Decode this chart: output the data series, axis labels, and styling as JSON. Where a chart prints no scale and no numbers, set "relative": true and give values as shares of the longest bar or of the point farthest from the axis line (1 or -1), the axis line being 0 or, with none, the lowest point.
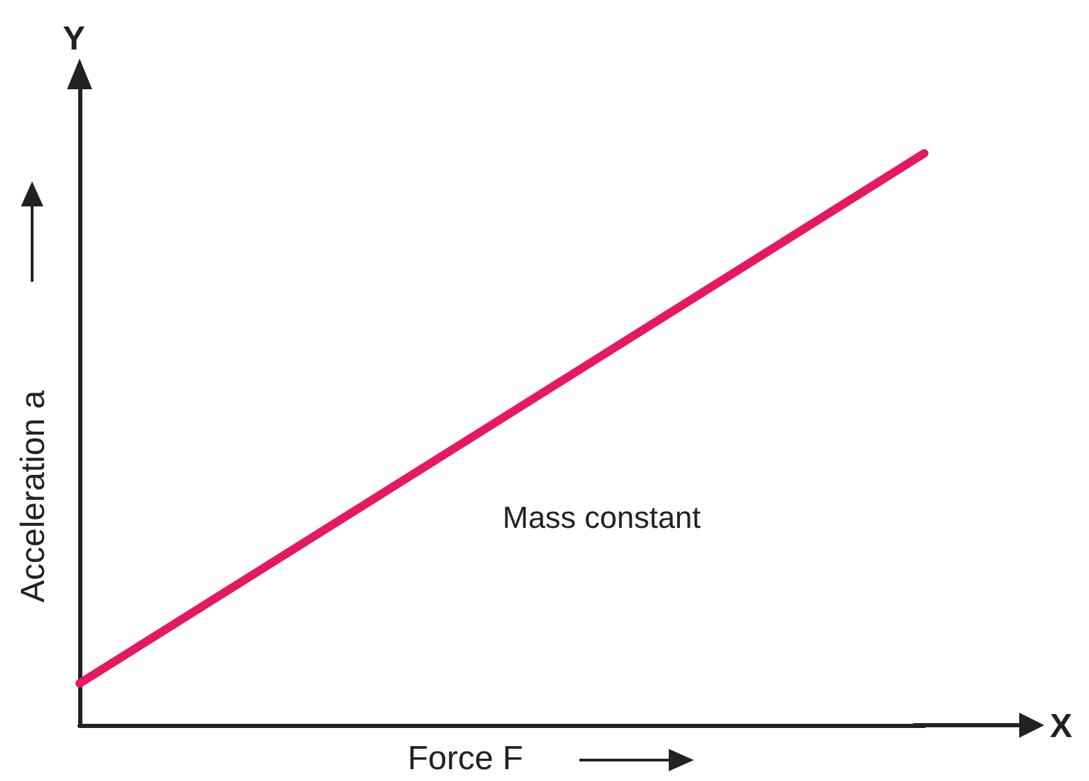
{
  "chart_data": {
    "type": "line",
    "relative": true,
    "xlabel": "Force F",
    "ylabel": "Acceleration a",
    "categories": [
      null,
      null
    ],
    "series": [
      {
        "color": "#e6185f",
        "values": [
          0.073,
          1
        ]
      }
    ],
    "annotations": [
      "Mass constant",
      "X",
      "Y"
    ]
  }
}
